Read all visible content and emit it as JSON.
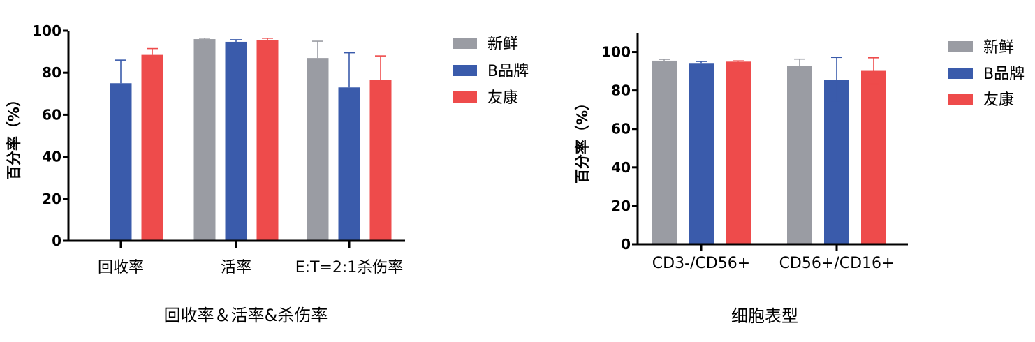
{
  "colors": {
    "fresh": "#9a9ca3",
    "brandB": "#3a5bab",
    "youkang": "#ee4b4b",
    "axis": "#000000"
  },
  "chart_data": [
    {
      "type": "bar",
      "ylabel": "百分率（%）",
      "xlabel": "回收率＆活率&杀伤率",
      "ylim": [
        0,
        100
      ],
      "yticks": [
        "0",
        "20",
        "40",
        "60",
        "80",
        "100"
      ],
      "categories": [
        "回收率",
        "活率",
        "E:T=2:1杀伤率"
      ],
      "series": [
        {
          "name": "新鲜",
          "color": "#9a9ca3",
          "values": [
            null,
            96,
            87
          ],
          "errors": [
            null,
            0.4,
            8
          ]
        },
        {
          "name": "B品牌",
          "color": "#3a5bab",
          "values": [
            75,
            94.7,
            73
          ],
          "errors": [
            11,
            1,
            16.5
          ]
        },
        {
          "name": "友康",
          "color": "#ee4b4b",
          "values": [
            88.5,
            95.6,
            76.5
          ],
          "errors": [
            3,
            0.8,
            11.5
          ]
        }
      ],
      "legend_position": "right"
    },
    {
      "type": "bar",
      "ylabel": "百分率（%）",
      "xlabel": "细胞表型",
      "ylim": [
        0,
        110
      ],
      "yticks": [
        "0",
        "20",
        "40",
        "60",
        "80",
        "100"
      ],
      "categories": [
        "CD3-/CD56+",
        "CD56+/CD16+"
      ],
      "series": [
        {
          "name": "新鲜",
          "color": "#9a9ca3",
          "values": [
            95.5,
            92.8
          ],
          "errors": [
            0.7,
            3.5
          ]
        },
        {
          "name": "B品牌",
          "color": "#3a5bab",
          "values": [
            94.3,
            85.5
          ],
          "errors": [
            0.8,
            11.7
          ]
        },
        {
          "name": "友康",
          "color": "#ee4b4b",
          "values": [
            95,
            90.2
          ],
          "errors": [
            0.4,
            6.8
          ]
        }
      ],
      "legend_position": "right"
    }
  ]
}
